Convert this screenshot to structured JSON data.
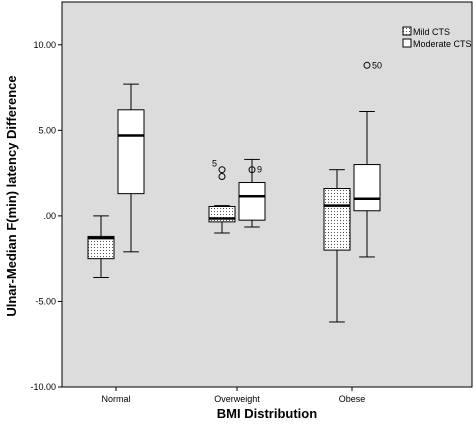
{
  "chart_data": {
    "type": "boxplot",
    "xlabel": "BMI Distribution",
    "ylabel": "Ulnar-Median F(min) latency Difference",
    "ylim": [
      -10,
      12.5
    ],
    "yticks": [
      "-10.00",
      "-5.00",
      ".00",
      "5.00",
      "10.00"
    ],
    "ytick_values": [
      -10,
      -5,
      0,
      5,
      10
    ],
    "categories": [
      "Normal",
      "Overweight",
      "Obese"
    ],
    "series": [
      {
        "name": "Mild CTS",
        "fill": "dotted",
        "boxes": [
          {
            "min": -3.6,
            "q1": -2.5,
            "median": -1.3,
            "q3": -1.2,
            "max": 0.0,
            "outliers": []
          },
          {
            "min": -1.0,
            "q1": -0.35,
            "median": -0.15,
            "q3": 0.55,
            "max": 0.6,
            "outliers": [
              {
                "y": 2.7,
                "label": "5"
              },
              {
                "y": 2.3,
                "label": ""
              }
            ]
          },
          {
            "min": -6.2,
            "q1": -2.0,
            "median": 0.6,
            "q3": 1.6,
            "max": 2.7,
            "outliers": []
          }
        ]
      },
      {
        "name": "Moderate CTS",
        "fill": "white",
        "boxes": [
          {
            "min": -2.1,
            "q1": 1.3,
            "median": 4.7,
            "q3": 6.2,
            "max": 7.7,
            "outliers": []
          },
          {
            "min": -0.65,
            "q1": -0.25,
            "median": 1.15,
            "q3": 1.95,
            "max": 3.3,
            "outliers": [
              {
                "y": 2.7,
                "label": "9"
              }
            ]
          },
          {
            "min": -2.4,
            "q1": 0.3,
            "median": 1.0,
            "q3": 3.0,
            "max": 6.1,
            "outliers": [
              {
                "y": 8.8,
                "label": "50"
              }
            ]
          }
        ]
      }
    ],
    "legend_position": "top-right",
    "plot_background": "#dcdcdc",
    "grid": false
  }
}
